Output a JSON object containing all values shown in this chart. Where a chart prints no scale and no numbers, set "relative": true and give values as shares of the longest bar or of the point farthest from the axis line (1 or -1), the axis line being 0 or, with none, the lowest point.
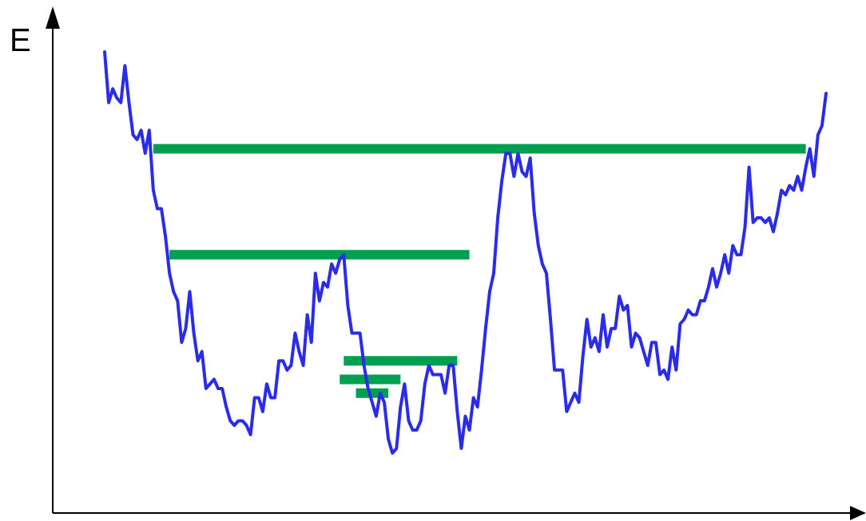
{
  "chart_data": {
    "type": "line",
    "ylabel": "E",
    "relative": true,
    "categories": [
      null,
      null,
      null,
      null,
      null,
      null,
      null,
      null,
      null,
      null,
      null,
      null,
      null,
      null,
      null,
      null,
      null,
      null,
      null,
      null,
      null,
      null,
      null,
      null,
      null,
      null,
      null,
      null,
      null,
      null,
      null,
      null,
      null,
      null,
      null,
      null,
      null,
      null,
      null,
      null,
      null,
      null,
      null,
      null,
      null,
      null,
      null,
      null,
      null,
      null,
      null,
      null,
      null,
      null,
      null,
      null,
      null,
      null,
      null,
      null,
      null,
      null,
      null,
      null,
      null,
      null,
      null,
      null,
      null,
      null,
      null,
      null,
      null,
      null,
      null,
      null,
      null,
      null,
      null,
      null,
      null,
      null,
      null,
      null,
      null,
      null,
      null,
      null,
      null,
      null,
      null,
      null,
      null,
      null,
      null,
      null,
      null,
      null,
      null,
      null,
      null,
      null,
      null,
      null,
      null,
      null,
      null,
      null,
      null,
      null,
      null,
      null,
      null,
      null,
      null,
      null,
      null,
      null,
      null,
      null,
      null,
      null,
      null,
      null,
      null,
      null,
      null,
      null,
      null,
      null,
      null,
      null,
      null,
      null,
      null,
      null,
      null,
      null,
      null,
      null,
      null,
      null,
      null,
      null,
      null,
      null,
      null,
      null,
      null,
      null,
      null,
      null,
      null,
      null,
      null,
      null,
      null,
      null,
      null,
      null,
      null,
      null,
      null,
      null,
      null,
      null,
      null,
      null,
      null,
      null,
      null,
      null,
      null,
      null,
      null,
      null,
      null,
      null,
      null
    ],
    "series": [
      {
        "color": "#2b2bea",
        "values": [
          1.0,
          0.89,
          0.92,
          0.9,
          0.89,
          0.97,
          0.89,
          0.82,
          0.81,
          0.83,
          0.78,
          0.83,
          0.7,
          0.66,
          0.66,
          0.6,
          0.52,
          0.48,
          0.46,
          0.37,
          0.4,
          0.48,
          0.39,
          0.33,
          0.35,
          0.27,
          0.28,
          0.29,
          0.27,
          0.27,
          0.23,
          0.2,
          0.19,
          0.2,
          0.2,
          0.19,
          0.17,
          0.25,
          0.25,
          0.22,
          0.28,
          0.25,
          0.25,
          0.33,
          0.33,
          0.31,
          0.32,
          0.39,
          0.35,
          0.32,
          0.43,
          0.37,
          0.52,
          0.46,
          0.5,
          0.49,
          0.54,
          0.52,
          0.55,
          0.56,
          0.45,
          0.39,
          0.39,
          0.39,
          0.32,
          0.27,
          0.24,
          0.21,
          0.26,
          0.24,
          0.16,
          0.13,
          0.14,
          0.23,
          0.28,
          0.2,
          0.18,
          0.18,
          0.2,
          0.28,
          0.32,
          0.3,
          0.3,
          0.3,
          0.26,
          0.32,
          0.32,
          0.22,
          0.14,
          0.21,
          0.18,
          0.25,
          0.23,
          0.31,
          0.4,
          0.48,
          0.52,
          0.64,
          0.72,
          0.78,
          0.78,
          0.73,
          0.78,
          0.74,
          0.73,
          0.77,
          0.65,
          0.58,
          0.54,
          0.52,
          0.42,
          0.31,
          0.31,
          0.31,
          0.22,
          0.24,
          0.26,
          0.24,
          0.34,
          0.42,
          0.36,
          0.38,
          0.35,
          0.43,
          0.36,
          0.4,
          0.4,
          0.47,
          0.44,
          0.45,
          0.36,
          0.39,
          0.38,
          0.35,
          0.32,
          0.37,
          0.37,
          0.3,
          0.31,
          0.29,
          0.36,
          0.31,
          0.41,
          0.42,
          0.44,
          0.43,
          0.43,
          0.46,
          0.46,
          0.49,
          0.53,
          0.49,
          0.52,
          0.56,
          0.52,
          0.58,
          0.56,
          0.56,
          0.62,
          0.75,
          0.63,
          0.64,
          0.64,
          0.63,
          0.64,
          0.61,
          0.65,
          0.7,
          0.69,
          0.71,
          0.7,
          0.73,
          0.7,
          0.75,
          0.79,
          0.73,
          0.82,
          0.84,
          0.91
        ]
      },
      {
        "color": "#00a050",
        "values": [
          null,
          null,
          null,
          null,
          null,
          null,
          null,
          null,
          null,
          null,
          null,
          null,
          0.79,
          0.79,
          0.79,
          0.79,
          0.79,
          0.79,
          0.79,
          0.79,
          0.79,
          0.79,
          0.79,
          0.79,
          0.79,
          0.79,
          0.79,
          0.79,
          0.79,
          0.79,
          0.79,
          0.79,
          0.79,
          0.79,
          0.79,
          0.79,
          0.79,
          0.79,
          0.79,
          0.79,
          0.79,
          0.79,
          0.79,
          0.79,
          0.79,
          0.79,
          0.79,
          0.79,
          0.79,
          0.79,
          0.79,
          0.79,
          0.79,
          0.79,
          0.79,
          0.79,
          0.79,
          0.79,
          0.79,
          0.79,
          0.79,
          0.79,
          0.79,
          0.79,
          0.79,
          0.79,
          0.79,
          0.79,
          0.79,
          0.79,
          0.79,
          0.79,
          0.79,
          0.79,
          0.79,
          0.79,
          0.79,
          0.79,
          0.79,
          0.79,
          0.79,
          0.79,
          0.79,
          0.79,
          0.79,
          0.79,
          0.79,
          0.79,
          0.79,
          0.79,
          0.79,
          0.79,
          0.79,
          0.79,
          0.79,
          0.79,
          0.79,
          0.79,
          0.79,
          0.79,
          0.79,
          0.79,
          0.79,
          0.79,
          0.79,
          0.79,
          0.79,
          0.79,
          0.79,
          0.79,
          0.79,
          0.79,
          0.79,
          0.79,
          0.79,
          0.79,
          0.79,
          0.79,
          0.79,
          0.79,
          0.79,
          0.79,
          0.79,
          0.79,
          0.79,
          0.79,
          0.79,
          0.79,
          0.79,
          0.79,
          0.79,
          0.79,
          0.79,
          0.79,
          0.79,
          0.79,
          0.79,
          0.79,
          0.79,
          0.79,
          0.79,
          0.79,
          0.79,
          0.79,
          0.79,
          0.79,
          0.79,
          0.79,
          0.79,
          0.79,
          0.79,
          0.79,
          0.79,
          0.79,
          0.79,
          0.79,
          0.79,
          0.79,
          0.79,
          0.79,
          0.79,
          0.79,
          0.79,
          0.79,
          0.79,
          0.79,
          0.79,
          0.79,
          0.79,
          0.79,
          0.79,
          0.79,
          0.79,
          0.79,
          null,
          null,
          null,
          null,
          null
        ]
      },
      {
        "color": "#00a050",
        "values": [
          null,
          null,
          null,
          null,
          null,
          null,
          null,
          null,
          null,
          null,
          null,
          null,
          null,
          null,
          null,
          null,
          0.56,
          0.56,
          0.56,
          0.56,
          0.56,
          0.56,
          0.56,
          0.56,
          0.56,
          0.56,
          0.56,
          0.56,
          0.56,
          0.56,
          0.56,
          0.56,
          0.56,
          0.56,
          0.56,
          0.56,
          0.56,
          0.56,
          0.56,
          0.56,
          0.56,
          0.56,
          0.56,
          0.56,
          0.56,
          0.56,
          0.56,
          0.56,
          0.56,
          0.56,
          0.56,
          0.56,
          0.56,
          0.56,
          0.56,
          0.56,
          0.56,
          0.56,
          0.56,
          0.56,
          0.56,
          0.56,
          0.56,
          0.56,
          0.56,
          0.56,
          0.56,
          0.56,
          0.56,
          0.56,
          0.56,
          0.56,
          0.56,
          0.56,
          0.56,
          0.56,
          0.56,
          0.56,
          0.56,
          0.56,
          0.56,
          0.56,
          0.56,
          0.56,
          0.56,
          0.56,
          0.56,
          0.56,
          0.56,
          0.56,
          0.56,
          null,
          null,
          null,
          null,
          null,
          null,
          null,
          null,
          null,
          null,
          null,
          null,
          null,
          null,
          null,
          null,
          null,
          null,
          null,
          null,
          null,
          null,
          null,
          null,
          null,
          null,
          null,
          null,
          null,
          null,
          null,
          null,
          null,
          null,
          null,
          null,
          null,
          null,
          null,
          null,
          null,
          null,
          null,
          null,
          null,
          null,
          null,
          null,
          null,
          null,
          null,
          null,
          null,
          null,
          null,
          null,
          null,
          null,
          null,
          null,
          null,
          null,
          null,
          null,
          null,
          null,
          null,
          null,
          null,
          null,
          null,
          null,
          null,
          null,
          null,
          null,
          null,
          null,
          null,
          null,
          null,
          null,
          null,
          null,
          null,
          null,
          null,
          null
        ]
      },
      {
        "color": "#00a050",
        "values": [
          null,
          null,
          null,
          null,
          null,
          null,
          null,
          null,
          null,
          null,
          null,
          null,
          null,
          null,
          null,
          null,
          null,
          null,
          null,
          null,
          null,
          null,
          null,
          null,
          null,
          null,
          null,
          null,
          null,
          null,
          null,
          null,
          null,
          null,
          null,
          null,
          null,
          null,
          null,
          null,
          null,
          null,
          null,
          null,
          null,
          null,
          null,
          null,
          null,
          null,
          null,
          null,
          null,
          null,
          null,
          null,
          null,
          null,
          null,
          0.33,
          0.33,
          0.33,
          0.33,
          0.33,
          0.33,
          0.33,
          0.33,
          0.33,
          0.33,
          0.33,
          0.33,
          0.33,
          0.33,
          0.33,
          0.33,
          0.33,
          0.33,
          0.33,
          0.33,
          0.33,
          0.33,
          0.33,
          0.33,
          0.33,
          0.33,
          0.33,
          0.33,
          0.33,
          null,
          null,
          null,
          null,
          null,
          null,
          null,
          null,
          null,
          null,
          null,
          null,
          null,
          null,
          null,
          null,
          null,
          null,
          null,
          null,
          null,
          null,
          null,
          null,
          null,
          null,
          null,
          null,
          null,
          null,
          null,
          null,
          null,
          null,
          null,
          null,
          null,
          null,
          null,
          null,
          null,
          null,
          null,
          null,
          null,
          null,
          null,
          null,
          null,
          null,
          null,
          null,
          null,
          null,
          null,
          null,
          null,
          null,
          null,
          null,
          null,
          null,
          null,
          null,
          null,
          null,
          null,
          null,
          null,
          null,
          null,
          null,
          null,
          null,
          null,
          null,
          null,
          null,
          null,
          null,
          null,
          null,
          null,
          null,
          null,
          null,
          null,
          null,
          null,
          null,
          null
        ]
      },
      {
        "color": "#00a050",
        "values": [
          null,
          null,
          null,
          null,
          null,
          null,
          null,
          null,
          null,
          null,
          null,
          null,
          null,
          null,
          null,
          null,
          null,
          null,
          null,
          null,
          null,
          null,
          null,
          null,
          null,
          null,
          null,
          null,
          null,
          null,
          null,
          null,
          null,
          null,
          null,
          null,
          null,
          null,
          null,
          null,
          null,
          null,
          null,
          null,
          null,
          null,
          null,
          null,
          null,
          null,
          null,
          null,
          null,
          null,
          null,
          null,
          null,
          null,
          0.29,
          0.29,
          0.29,
          0.29,
          0.29,
          0.29,
          0.29,
          0.29,
          0.29,
          0.29,
          0.29,
          0.29,
          0.29,
          0.29,
          0.29,
          0.29,
          null,
          null,
          null,
          null,
          null,
          null,
          null,
          null,
          null,
          null,
          null,
          null,
          null,
          null,
          null,
          null,
          null,
          null,
          null,
          null,
          null,
          null,
          null,
          null,
          null,
          null,
          null,
          null,
          null,
          null,
          null,
          null,
          null,
          null,
          null,
          null,
          null,
          null,
          null,
          null,
          null,
          null,
          null,
          null,
          null,
          null,
          null,
          null,
          null,
          null,
          null,
          null,
          null,
          null,
          null,
          null,
          null,
          null,
          null,
          null,
          null,
          null,
          null,
          null,
          null,
          null,
          null,
          null,
          null,
          null,
          null,
          null,
          null,
          null,
          null,
          null,
          null,
          null,
          null,
          null,
          null,
          null,
          null,
          null,
          null,
          null,
          null,
          null,
          null,
          null,
          null,
          null,
          null,
          null,
          null,
          null,
          null,
          null,
          null,
          null,
          null,
          null,
          null,
          null,
          null
        ]
      },
      {
        "color": "#00a050",
        "values": [
          null,
          null,
          null,
          null,
          null,
          null,
          null,
          null,
          null,
          null,
          null,
          null,
          null,
          null,
          null,
          null,
          null,
          null,
          null,
          null,
          null,
          null,
          null,
          null,
          null,
          null,
          null,
          null,
          null,
          null,
          null,
          null,
          null,
          null,
          null,
          null,
          null,
          null,
          null,
          null,
          null,
          null,
          null,
          null,
          null,
          null,
          null,
          null,
          null,
          null,
          null,
          null,
          null,
          null,
          null,
          null,
          null,
          null,
          null,
          null,
          null,
          null,
          0.26,
          0.26,
          0.26,
          0.26,
          0.26,
          0.26,
          0.26,
          0.26,
          0.26,
          null,
          null,
          null,
          null,
          null,
          null,
          null,
          null,
          null,
          null,
          null,
          null,
          null,
          null,
          null,
          null,
          null,
          null,
          null,
          null,
          null,
          null,
          null,
          null,
          null,
          null,
          null,
          null,
          null,
          null,
          null,
          null,
          null,
          null,
          null,
          null,
          null,
          null,
          null,
          null,
          null,
          null,
          null,
          null,
          null,
          null,
          null,
          null,
          null,
          null,
          null,
          null,
          null,
          null,
          null,
          null,
          null,
          null,
          null,
          null,
          null,
          null,
          null,
          null,
          null,
          null,
          null,
          null,
          null,
          null,
          null,
          null,
          null,
          null,
          null,
          null,
          null,
          null,
          null,
          null,
          null,
          null,
          null,
          null,
          null,
          null,
          null,
          null,
          null,
          null,
          null,
          null,
          null,
          null,
          null,
          null,
          null,
          null,
          null,
          null,
          null,
          null,
          null,
          null,
          null,
          null,
          null,
          null
        ]
      }
    ]
  }
}
